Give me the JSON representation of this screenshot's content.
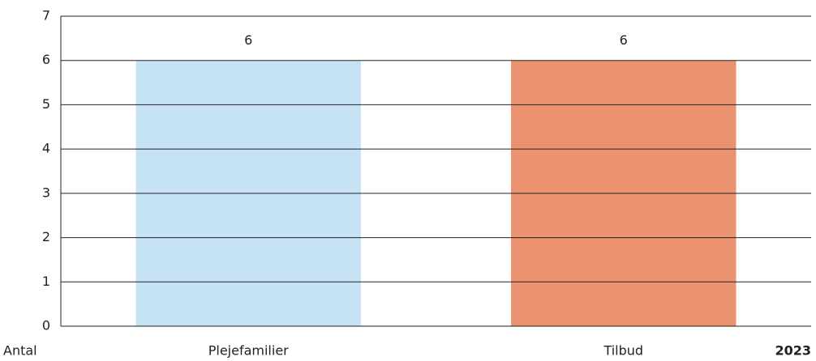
{
  "chart_data": {
    "type": "bar",
    "ylabel": "Antal",
    "annotation": "2023",
    "categories": [
      "Plejefamilier",
      "Tilbud"
    ],
    "values": [
      6,
      6
    ],
    "colors": [
      "#c5e3f5",
      "#eb9270"
    ],
    "ylim": [
      0,
      7
    ],
    "yticks": [
      0,
      1,
      2,
      3,
      4,
      5,
      6,
      7
    ],
    "grid": true
  }
}
